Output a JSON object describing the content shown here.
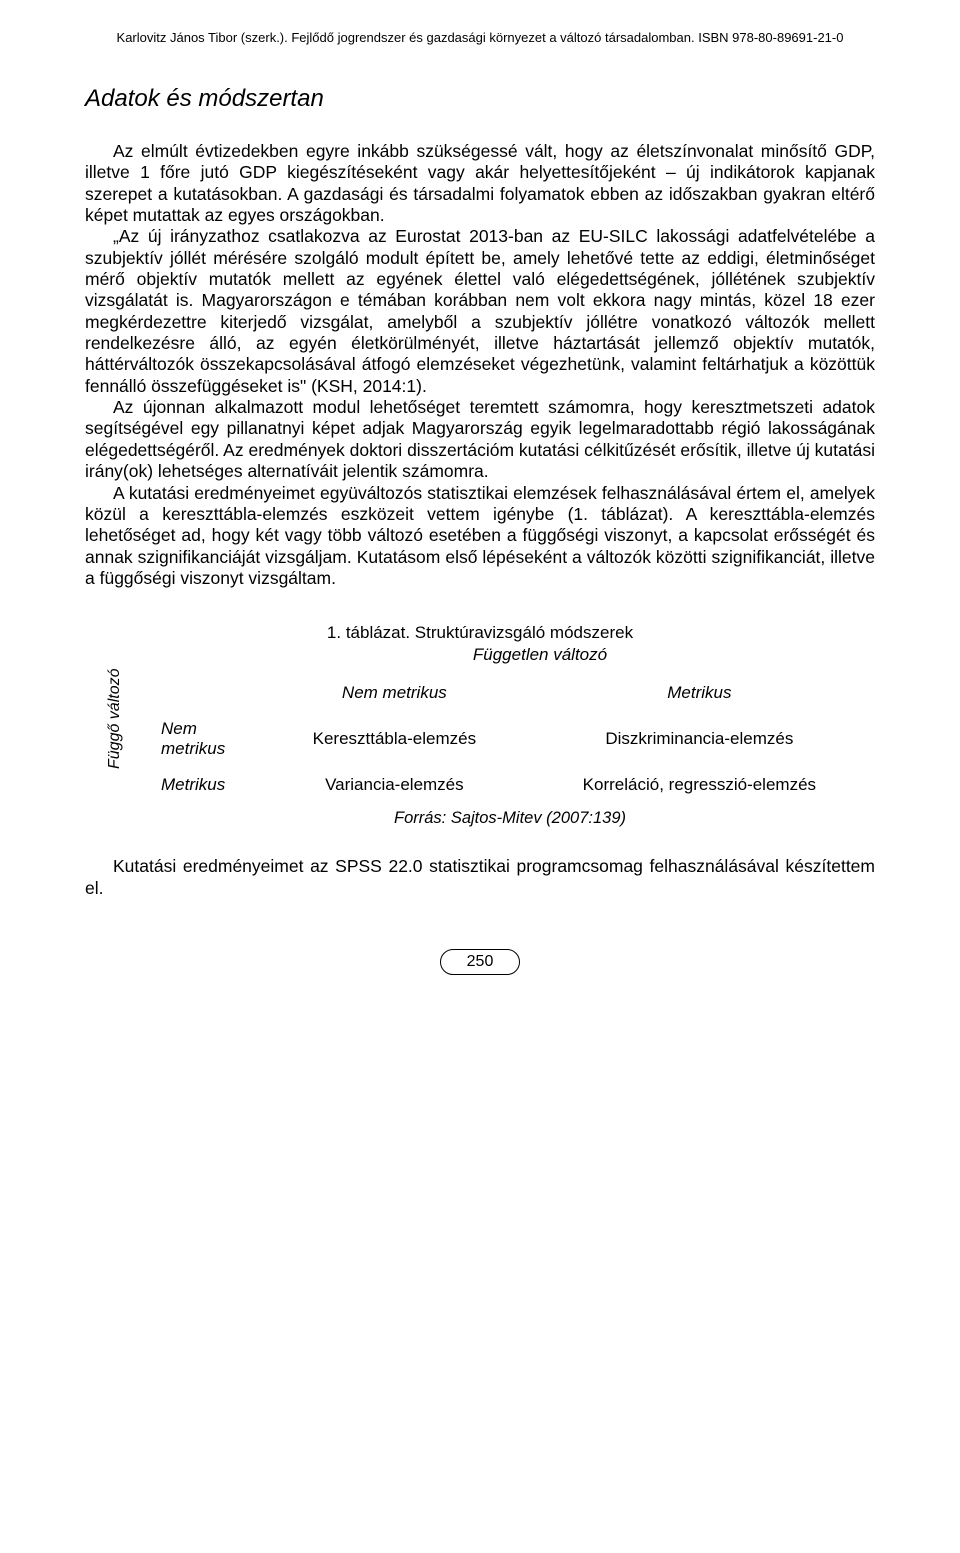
{
  "header": "Karlovitz János Tibor (szerk.). Fejlődő jogrendszer és gazdasági környezet a változó társadalomban. ISBN 978-80-89691-21-0",
  "section_title": "Adatok és módszertan",
  "para1": "Az elmúlt évtizedekben egyre inkább szükségessé vált, hogy az életszínvonalat minősítő GDP, illetve 1 főre jutó GDP kiegészítéseként vagy akár helyettesítőjeként – új indikátorok kapjanak szerepet a kutatásokban. A gazdasági és társadalmi folyamatok ebben az időszakban gyakran eltérő képet mutattak az egyes országokban.",
  "para2": "„Az új irányzathoz csatlakozva az Eurostat 2013-ban az EU-SILC lakossági adatfelvételébe a szubjektív jóllét mérésére szolgáló modult épített be, amely lehetővé tette az eddigi, életminőséget mérő objektív mutatók mellett az egyének élettel való elégedettségének, jóllétének szubjektív vizsgálatát is. Magyarországon e témában korábban nem volt ekkora nagy mintás, közel 18 ezer megkérdezettre kiterjedő vizsgálat, amelyből a szubjektív jóllétre vonatkozó változók mellett rendelkezésre álló, az egyén életkörülményét, illetve háztartását jellemző objektív mutatók, háttérváltozók összekapcsolásával átfogó elemzéseket végezhetünk, valamint feltárhatjuk a közöttük fennálló összefüggéseket is\" (KSH, 2014:1).",
  "para3": "Az újonnan alkalmazott modul lehetőséget teremtett számomra, hogy keresztmetszeti adatok segítségével egy pillanatnyi képet adjak Magyarország egyik legelmaradottabb régió lakosságának elégedettségéről. Az eredmények doktori disszertációm kutatási célkitűzését erősítik, illetve új kutatási irány(ok) lehetséges alternatíváit jelentik számomra.",
  "para4": "A kutatási eredményeimet együváltozós statisztikai elemzések felhasználásával értem el, amelyek közül a kereszttábla-elemzés eszközeit vettem igénybe (1. táblázat). A kereszttábla-elemzés lehetőséget ad, hogy két vagy több változó esetében a függőségi viszonyt, a kapcsolat erősségét és annak szignifikanciáját vizsgáljam. Kutatásom első lépéseként a változók közötti szignifikanciát, illetve a függőségi viszonyt vizsgáltam.",
  "table": {
    "caption": "1. táblázat. Struktúravizsgáló módszerek",
    "independent_label": "Független változó",
    "dependent_label": "Függő változó",
    "col_head_1": "Nem metrikus",
    "col_head_2": "Metrikus",
    "row_head_1": "Nem metrikus",
    "row_head_2": "Metrikus",
    "cell_11": "Kereszttábla-elemzés",
    "cell_12": "Diszkriminancia-elemzés",
    "cell_21": "Variancia-elemzés",
    "cell_22": "Korreláció, regresszió-elemzés",
    "source": "Forrás: Sajtos-Mitev (2007:139)"
  },
  "closing": "Kutatási eredményeimet az SPSS 22.0 statisztikai programcsomag felhasználásával készítettem el.",
  "page_number": "250"
}
